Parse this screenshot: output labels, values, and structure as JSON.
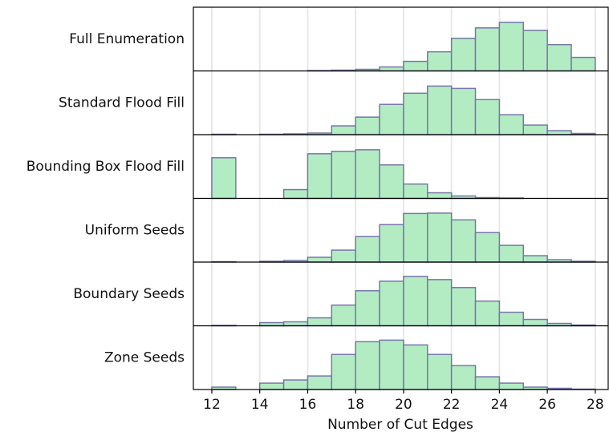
{
  "chart_data": {
    "type": "histogram",
    "xlabel": "Number of Cut Edges",
    "bins": [
      12,
      13,
      14,
      15,
      16,
      17,
      18,
      19,
      20,
      21,
      22,
      23,
      24,
      25,
      26,
      27,
      28
    ],
    "xlim": [
      11.23,
      28.54
    ],
    "xticks": [
      12,
      14,
      16,
      18,
      20,
      22,
      24,
      26,
      28
    ],
    "ylim": [
      0,
      80
    ],
    "grid": true,
    "color": "#b3ecc3",
    "edgecolor": "#7777aa",
    "series": [
      {
        "name": "Full Enumeration",
        "values": [
          0,
          0,
          0,
          0,
          0.5,
          1,
          2,
          5,
          12,
          24,
          41,
          54,
          61,
          51,
          33,
          17
        ]
      },
      {
        "name": "Standard Flood Fill",
        "values": [
          0.5,
          0,
          0.5,
          1,
          2,
          11,
          22,
          38,
          52,
          61,
          58,
          44,
          25,
          12,
          5,
          1.5
        ]
      },
      {
        "name": "Bounding Box Flood Fill",
        "values": [
          51,
          0,
          0,
          11,
          56,
          59,
          61,
          42,
          18,
          7,
          3,
          1,
          0.5,
          0,
          0,
          0
        ]
      },
      {
        "name": "Uniform Seeds",
        "values": [
          0.5,
          0,
          1,
          2,
          6,
          15,
          32,
          47,
          61,
          61.5,
          53,
          37,
          21,
          8,
          3,
          1
        ]
      },
      {
        "name": "Boundary Seeds",
        "values": [
          0.5,
          0,
          4,
          5,
          10,
          26,
          44,
          56,
          62,
          58,
          48,
          31,
          17,
          8,
          3,
          1
        ]
      },
      {
        "name": "Zone Seeds",
        "values": [
          3,
          0,
          8,
          12,
          17,
          44,
          60,
          62,
          56,
          44,
          30,
          16,
          8,
          3,
          1.5,
          0.5
        ]
      }
    ]
  }
}
